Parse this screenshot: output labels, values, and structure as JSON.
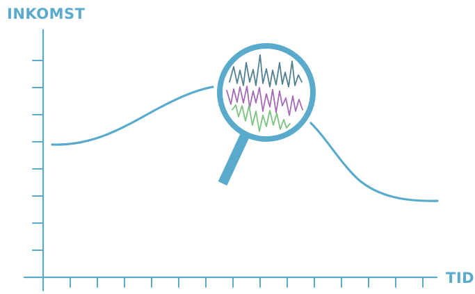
{
  "labels": {
    "y_axis": "INKOMST",
    "x_axis": "TID"
  },
  "colors": {
    "axis": "#5aabcb",
    "curve": "#5aabcb",
    "magnifier": "#5aabcb",
    "detail_line_1": "#4f7f8f",
    "detail_line_2": "#a46ab5",
    "detail_line_3": "#7cc47e"
  },
  "icons": {
    "magnifier": "magnifying-glass-icon"
  }
}
